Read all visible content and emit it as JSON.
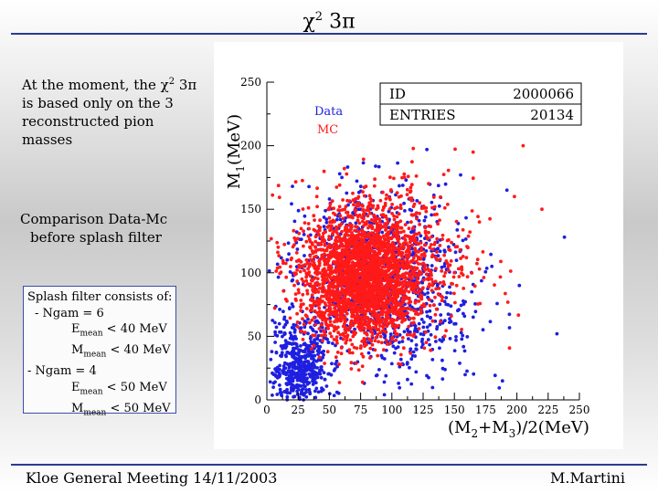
{
  "slide": {
    "title_main": "χ",
    "title_sup": "2",
    "title_rest": " 3π"
  },
  "intro": {
    "line1_a": "At the moment, the χ",
    "line1_sup": "2",
    "line1_b": " 3π",
    "line2": "is based only on the 3",
    "line3": "reconstructed pion masses"
  },
  "comparison": {
    "line1": "Comparison Data-Mc",
    "line2": "before splash filter"
  },
  "splash": {
    "heading": "Splash filter consists of:",
    "case1": "- Ngam = 6",
    "e1_a": "E",
    "e1_sub": "mean",
    "e1_b": " < 40 MeV",
    "m1_a": "M",
    "m1_sub": "mean",
    "m1_b": " < 40 MeV",
    "case2": "- Ngam = 4",
    "e2_a": "E",
    "e2_sub": "mean",
    "e2_b": " < 50 MeV",
    "m2_a": "M",
    "m2_sub": "mean",
    "m2_b": " < 50 MeV"
  },
  "footer": {
    "left": "Kloe General Meeting 14/11/2003",
    "right": "M.Martini"
  },
  "stats": {
    "id_label": "ID",
    "id_value": "2000066",
    "entries_label": "ENTRIES",
    "entries_value": "20134"
  },
  "colors": {
    "data": "#1f1fe0",
    "mc": "#ff1a1a",
    "rule": "#2b3a8f"
  },
  "chart_data": {
    "type": "scatter",
    "xlabel_main": "(M",
    "xlabel_sub1": "2",
    "xlabel_mid": "+M",
    "xlabel_sub2": "3",
    "xlabel_end": ")/2(MeV)",
    "ylabel_main": "M",
    "ylabel_sub": "1",
    "ylabel_end": "(MeV)",
    "xlim": [
      0,
      250
    ],
    "ylim": [
      0,
      250
    ],
    "xticks": [
      0,
      25,
      50,
      75,
      100,
      125,
      150,
      175,
      200,
      225,
      250
    ],
    "yticks": [
      0,
      50,
      100,
      150,
      200,
      250
    ],
    "legend": [
      "Data",
      "MC"
    ],
    "series": [
      {
        "name": "Data",
        "color": "#1f1fe0",
        "description": "blue points, low-mass tail near (10–50, 0–60) plus halo around the core",
        "clusters": [
          {
            "cx": 85,
            "cy": 100,
            "sx": 32,
            "sy": 32,
            "n": 900
          },
          {
            "cx": 25,
            "cy": 25,
            "sx": 12,
            "sy": 17,
            "n": 500
          },
          {
            "cx": 120,
            "cy": 60,
            "sx": 35,
            "sy": 25,
            "n": 200
          }
        ],
        "outliers": [
          [
            128,
            197
          ],
          [
            155,
            177
          ],
          [
            192,
            165
          ],
          [
            120,
            235
          ],
          [
            238,
            128
          ],
          [
            232,
            52
          ],
          [
            202,
            90
          ],
          [
            180,
            105
          ],
          [
            60,
            175
          ]
        ]
      },
      {
        "name": "MC",
        "color": "#ff1a1a",
        "description": "dense red core centred near (75, 95)",
        "clusters": [
          {
            "cx": 75,
            "cy": 95,
            "sx": 22,
            "sy": 24,
            "n": 2200
          },
          {
            "cx": 95,
            "cy": 110,
            "sx": 35,
            "sy": 32,
            "n": 700
          }
        ],
        "outliers": [
          [
            165,
            195
          ],
          [
            198,
            160
          ],
          [
            205,
            200
          ],
          [
            220,
            150
          ],
          [
            62,
            182
          ],
          [
            40,
            160
          ],
          [
            110,
            175
          ],
          [
            170,
            140
          ]
        ]
      }
    ]
  }
}
